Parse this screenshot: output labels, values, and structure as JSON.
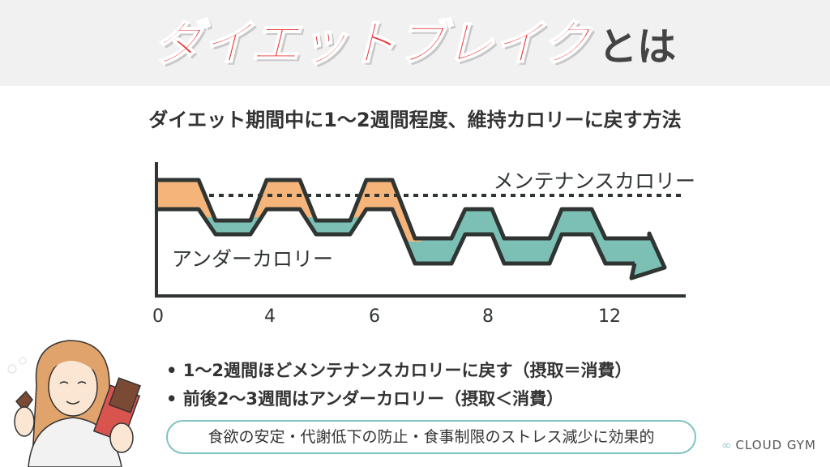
{
  "header": {
    "title_highlight": "ダイエットブレイク",
    "title_suffix": "とは"
  },
  "subtitle": "ダイエット期間中に1～2週間程度、維持カロリーに戻す方法",
  "diagram": {
    "maintenance_label": "メンテナンスカロリー",
    "under_label": "アンダーカロリー",
    "x_ticks": [
      "0",
      "4",
      "6",
      "8",
      "12"
    ],
    "colors": {
      "maintenance_phase": "#f5b47a",
      "deficit_phase": "#7cc0b5",
      "line": "#2f3533"
    }
  },
  "bullets": [
    {
      "text": "1～2週間ほどメンテナンスカロリーに戻す",
      "note": "（摂取＝消費）"
    },
    {
      "text": "前後2～3週間はアンダーカロリー",
      "note": "（摂取＜消費）"
    }
  ],
  "benefit_box": "食欲の安定・代謝低下の防止・食事制限のストレス減少に効果的",
  "logo": {
    "icon": "infinity-icon",
    "text": "CLOUD GYM"
  }
}
